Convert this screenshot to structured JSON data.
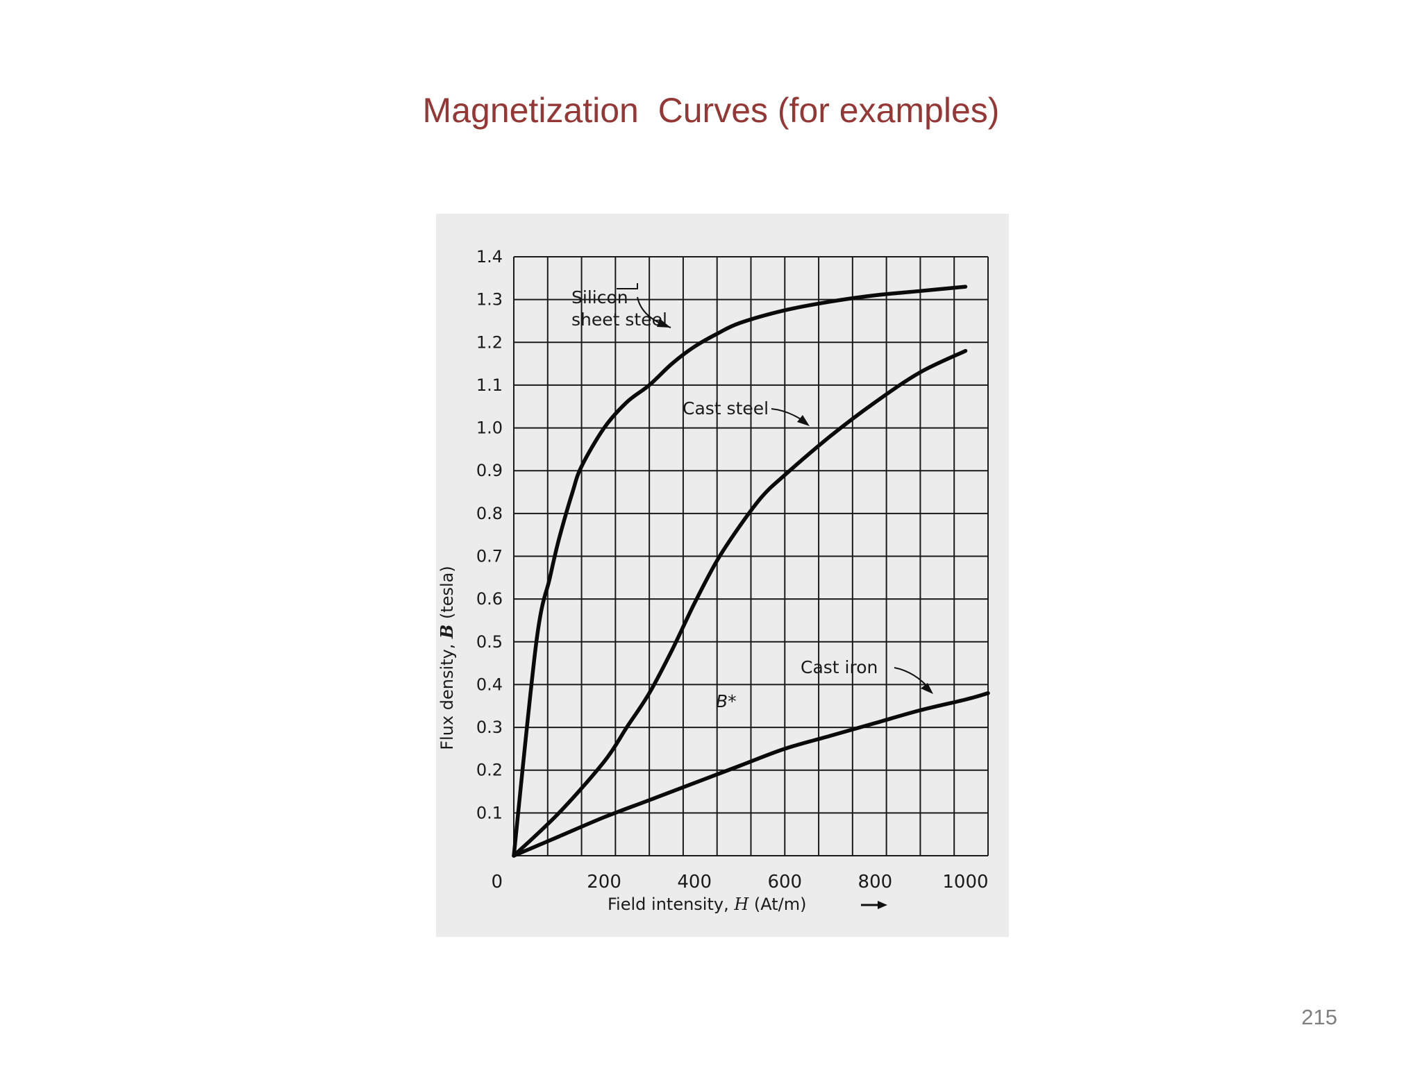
{
  "slide": {
    "title": "Magnetization  Curves (for examples)",
    "page_number": "215"
  },
  "chart_data": {
    "type": "line",
    "ylabel_prefix": "Flux density, ",
    "ylabel_symbol": "B",
    "ylabel_suffix": " (tesla)",
    "xlabel_prefix": "Field intensity, ",
    "xlabel_symbol": "H",
    "xlabel_suffix": " (At/m)",
    "xlim": [
      0,
      1050
    ],
    "ylim": [
      0,
      1.4
    ],
    "grid": true,
    "x_tick_values": [
      0,
      200,
      400,
      600,
      800,
      1000
    ],
    "x_tick_labels": [
      "0",
      "200",
      "400",
      "600",
      "800",
      "1000"
    ],
    "y_tick_values": [
      0.1,
      0.2,
      0.3,
      0.4,
      0.5,
      0.6,
      0.7,
      0.8,
      0.9,
      1.0,
      1.1,
      1.2,
      1.3,
      1.4
    ],
    "y_tick_labels": [
      "0.1",
      "0.2",
      "0.3",
      "0.4",
      "0.5",
      "0.6",
      "0.7",
      "0.8",
      "0.9",
      "1.0",
      "1.1",
      "1.2",
      "1.3",
      "1.4"
    ],
    "annotation_bstar": "B*",
    "series": [
      {
        "name": "Silicon sheet steel",
        "x": [
          0,
          50,
          80,
          100,
          130,
          150,
          200,
          250,
          300,
          350,
          400,
          450,
          500,
          600,
          700,
          800,
          900,
          1000
        ],
        "y": [
          0,
          0.5,
          0.65,
          0.74,
          0.85,
          0.91,
          1.0,
          1.06,
          1.1,
          1.15,
          1.19,
          1.22,
          1.245,
          1.275,
          1.295,
          1.31,
          1.32,
          1.33
        ]
      },
      {
        "name": "Cast steel",
        "x": [
          0,
          100,
          200,
          250,
          300,
          350,
          400,
          450,
          500,
          550,
          600,
          700,
          800,
          900,
          1000
        ],
        "y": [
          0,
          0.1,
          0.22,
          0.3,
          0.38,
          0.48,
          0.59,
          0.69,
          0.77,
          0.84,
          0.89,
          0.98,
          1.06,
          1.13,
          1.18
        ]
      },
      {
        "name": "Cast iron",
        "x": [
          0,
          100,
          200,
          300,
          400,
          500,
          600,
          700,
          800,
          900,
          1000,
          1050
        ],
        "y": [
          0,
          0.045,
          0.09,
          0.13,
          0.17,
          0.21,
          0.25,
          0.28,
          0.31,
          0.34,
          0.365,
          0.38
        ]
      }
    ]
  }
}
